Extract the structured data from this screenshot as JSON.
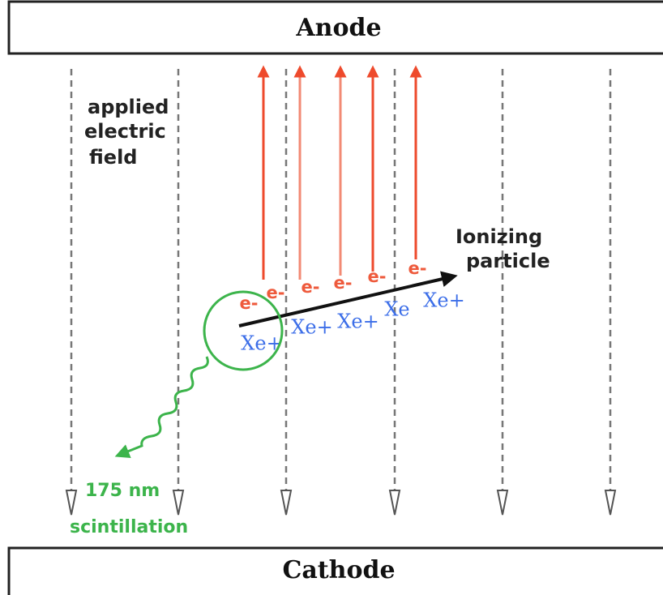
{
  "anode": "Anode",
  "cathode": "Cathode",
  "field_label": [
    "applied",
    "electric",
    "field"
  ],
  "particle_label": [
    "Ionizing",
    "particle"
  ],
  "electrons": [
    "e-",
    "e-",
    "e-",
    "e-",
    "e-",
    "e-"
  ],
  "ions": [
    "Xe+",
    "Xe+",
    "Xe+",
    "Xe",
    "Xe+"
  ],
  "scintillation_label": [
    "175 nm",
    "scintillation"
  ]
}
